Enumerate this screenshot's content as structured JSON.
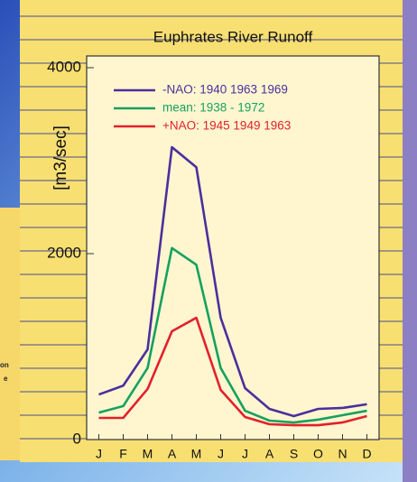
{
  "chart_data": {
    "type": "line",
    "title": "Euphrates River Runoff",
    "y_label": "[m3/sec]",
    "categories": [
      "J",
      "F",
      "M",
      "A",
      "M",
      "J",
      "J",
      "A",
      "S",
      "O",
      "N",
      "D"
    ],
    "series": [
      {
        "name": "-NAO: 1940 1963 1969",
        "color": "#4b2f9e",
        "values": [
          485,
          580,
          970,
          3145,
          2930,
          1310,
          553,
          330,
          252,
          330,
          340,
          380
        ]
      },
      {
        "name": "mean: 1938 - 1972",
        "color": "#16a060",
        "values": [
          290,
          360,
          770,
          2060,
          1880,
          770,
          310,
          204,
          184,
          214,
          262,
          310
        ]
      },
      {
        "name": "+NAO: 1945 1949 1963",
        "color": "#e3202e",
        "values": [
          233,
          233,
          544,
          1165,
          1310,
          534,
          243,
          165,
          155,
          155,
          184,
          252
        ]
      }
    ],
    "ylim": [
      0,
      4000
    ],
    "yticks": [
      0,
      2000,
      4000
    ],
    "legend": "upper-left",
    "fragments": [
      "on",
      "e"
    ]
  }
}
